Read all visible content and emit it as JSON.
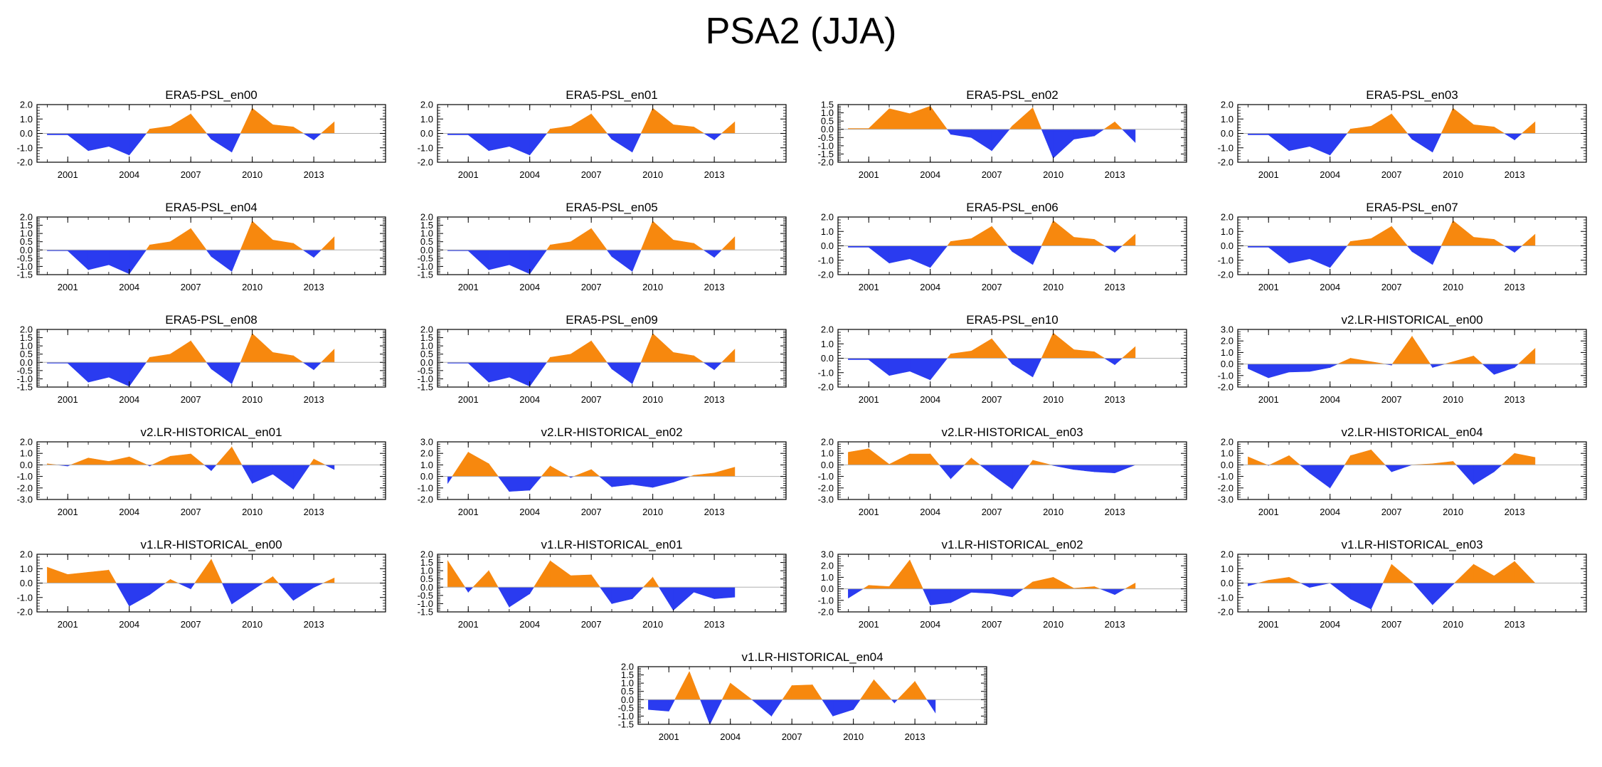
{
  "figure": {
    "title": "PSA2 (JJA)",
    "colors": {
      "positive": "#f7880e",
      "negative": "#2a3bf0",
      "zero_line": "#b0b0b0",
      "axis": "#000000"
    },
    "x_tick_labels": [
      "2001",
      "2004",
      "2007",
      "2010",
      "2013"
    ]
  },
  "chart_data": [
    {
      "type": "area",
      "title": "ERA5-PSL_en00",
      "x": [
        2000,
        2001,
        2002,
        2003,
        2004,
        2005,
        2006,
        2007,
        2008,
        2009,
        2010,
        2011,
        2012,
        2013,
        2014
      ],
      "values": [
        -0.1,
        -0.1,
        -1.2,
        -0.9,
        -1.5,
        0.3,
        0.5,
        1.35,
        -0.4,
        -1.3,
        1.75,
        0.6,
        0.45,
        -0.45,
        0.8
      ],
      "ylim": [
        -2,
        2
      ],
      "yticks": [
        "2.0",
        "1.0",
        "0.0",
        "-1.0",
        "-2.0"
      ],
      "xlim": [
        1999.5,
        2016.5
      ]
    },
    {
      "type": "area",
      "title": "ERA5-PSL_en01",
      "x": [
        2000,
        2001,
        2002,
        2003,
        2004,
        2005,
        2006,
        2007,
        2008,
        2009,
        2010,
        2011,
        2012,
        2013,
        2014
      ],
      "values": [
        -0.1,
        -0.1,
        -1.2,
        -0.9,
        -1.5,
        0.3,
        0.5,
        1.35,
        -0.4,
        -1.3,
        1.75,
        0.6,
        0.45,
        -0.45,
        0.8
      ],
      "ylim": [
        -2,
        2
      ],
      "yticks": [
        "2.0",
        "1.0",
        "0.0",
        "-1.0",
        "-2.0"
      ],
      "xlim": [
        1999.5,
        2016.5
      ]
    },
    {
      "type": "area",
      "title": "ERA5-PSL_en02",
      "x": [
        2000,
        2001,
        2002,
        2003,
        2004,
        2005,
        2006,
        2007,
        2008,
        2009,
        2010,
        2011,
        2012,
        2013,
        2014
      ],
      "values": [
        0.05,
        0.05,
        1.25,
        0.95,
        1.4,
        -0.3,
        -0.5,
        -1.3,
        0.2,
        1.3,
        -1.75,
        -0.6,
        -0.4,
        0.45,
        -0.8
      ],
      "ylim": [
        -2,
        1.5
      ],
      "yticks": [
        "1.5",
        "1.0",
        "0.5",
        "0.0",
        "-0.5",
        "-1.0",
        "-1.5",
        "-2.0"
      ],
      "xlim": [
        1999.5,
        2016.5
      ]
    },
    {
      "type": "area",
      "title": "ERA5-PSL_en03",
      "x": [
        2000,
        2001,
        2002,
        2003,
        2004,
        2005,
        2006,
        2007,
        2008,
        2009,
        2010,
        2011,
        2012,
        2013,
        2014
      ],
      "values": [
        -0.1,
        -0.1,
        -1.2,
        -0.9,
        -1.5,
        0.3,
        0.5,
        1.35,
        -0.4,
        -1.3,
        1.75,
        0.6,
        0.45,
        -0.45,
        0.8
      ],
      "ylim": [
        -2,
        2
      ],
      "yticks": [
        "2.0",
        "1.0",
        "0.0",
        "-1.0",
        "-2.0"
      ],
      "xlim": [
        1999.5,
        2016.5
      ]
    },
    {
      "type": "area",
      "title": "ERA5-PSL_en04",
      "x": [
        2000,
        2001,
        2002,
        2003,
        2004,
        2005,
        2006,
        2007,
        2008,
        2009,
        2010,
        2011,
        2012,
        2013,
        2014
      ],
      "values": [
        -0.05,
        -0.05,
        -1.2,
        -0.9,
        -1.45,
        0.3,
        0.5,
        1.3,
        -0.4,
        -1.3,
        1.75,
        0.6,
        0.4,
        -0.45,
        0.8
      ],
      "ylim": [
        -1.5,
        2
      ],
      "yticks": [
        "2.0",
        "1.5",
        "1.0",
        "0.5",
        "0.0",
        "-0.5",
        "-1.0",
        "-1.5"
      ],
      "xlim": [
        1999.5,
        2016.5
      ]
    },
    {
      "type": "area",
      "title": "ERA5-PSL_en05",
      "x": [
        2000,
        2001,
        2002,
        2003,
        2004,
        2005,
        2006,
        2007,
        2008,
        2009,
        2010,
        2011,
        2012,
        2013,
        2014
      ],
      "values": [
        -0.05,
        -0.05,
        -1.2,
        -0.9,
        -1.45,
        0.3,
        0.5,
        1.3,
        -0.4,
        -1.3,
        1.75,
        0.6,
        0.4,
        -0.45,
        0.8
      ],
      "ylim": [
        -1.5,
        2
      ],
      "yticks": [
        "2.0",
        "1.5",
        "1.0",
        "0.5",
        "0.0",
        "-0.5",
        "-1.0",
        "-1.5"
      ],
      "xlim": [
        1999.5,
        2016.5
      ]
    },
    {
      "type": "area",
      "title": "ERA5-PSL_en06",
      "x": [
        2000,
        2001,
        2002,
        2003,
        2004,
        2005,
        2006,
        2007,
        2008,
        2009,
        2010,
        2011,
        2012,
        2013,
        2014
      ],
      "values": [
        -0.1,
        -0.1,
        -1.2,
        -0.9,
        -1.5,
        0.3,
        0.5,
        1.35,
        -0.4,
        -1.3,
        1.75,
        0.6,
        0.45,
        -0.45,
        0.8
      ],
      "ylim": [
        -2,
        2
      ],
      "yticks": [
        "2.0",
        "1.0",
        "0.0",
        "-1.0",
        "-2.0"
      ],
      "xlim": [
        1999.5,
        2016.5
      ]
    },
    {
      "type": "area",
      "title": "ERA5-PSL_en07",
      "x": [
        2000,
        2001,
        2002,
        2003,
        2004,
        2005,
        2006,
        2007,
        2008,
        2009,
        2010,
        2011,
        2012,
        2013,
        2014
      ],
      "values": [
        -0.1,
        -0.1,
        -1.2,
        -0.9,
        -1.5,
        0.3,
        0.5,
        1.35,
        -0.4,
        -1.3,
        1.75,
        0.6,
        0.45,
        -0.45,
        0.8
      ],
      "ylim": [
        -2,
        2
      ],
      "yticks": [
        "2.0",
        "1.0",
        "0.0",
        "-1.0",
        "-2.0"
      ],
      "xlim": [
        1999.5,
        2016.5
      ]
    },
    {
      "type": "area",
      "title": "ERA5-PSL_en08",
      "x": [
        2000,
        2001,
        2002,
        2003,
        2004,
        2005,
        2006,
        2007,
        2008,
        2009,
        2010,
        2011,
        2012,
        2013,
        2014
      ],
      "values": [
        -0.05,
        -0.05,
        -1.2,
        -0.9,
        -1.45,
        0.3,
        0.5,
        1.3,
        -0.4,
        -1.3,
        1.75,
        0.6,
        0.4,
        -0.45,
        0.8
      ],
      "ylim": [
        -1.5,
        2
      ],
      "yticks": [
        "2.0",
        "1.5",
        "1.0",
        "0.5",
        "0.0",
        "-0.5",
        "-1.0",
        "-1.5"
      ],
      "xlim": [
        1999.5,
        2016.5
      ]
    },
    {
      "type": "area",
      "title": "ERA5-PSL_en09",
      "x": [
        2000,
        2001,
        2002,
        2003,
        2004,
        2005,
        2006,
        2007,
        2008,
        2009,
        2010,
        2011,
        2012,
        2013,
        2014
      ],
      "values": [
        -0.05,
        -0.05,
        -1.2,
        -0.9,
        -1.45,
        0.3,
        0.5,
        1.3,
        -0.4,
        -1.3,
        1.75,
        0.6,
        0.4,
        -0.45,
        0.8
      ],
      "ylim": [
        -1.5,
        2
      ],
      "yticks": [
        "2.0",
        "1.5",
        "1.0",
        "0.5",
        "0.0",
        "-0.5",
        "-1.0",
        "-1.5"
      ],
      "xlim": [
        1999.5,
        2016.5
      ]
    },
    {
      "type": "area",
      "title": "ERA5-PSL_en10",
      "x": [
        2000,
        2001,
        2002,
        2003,
        2004,
        2005,
        2006,
        2007,
        2008,
        2009,
        2010,
        2011,
        2012,
        2013,
        2014
      ],
      "values": [
        -0.1,
        -0.1,
        -1.2,
        -0.9,
        -1.5,
        0.3,
        0.5,
        1.35,
        -0.4,
        -1.3,
        1.75,
        0.6,
        0.45,
        -0.45,
        0.8
      ],
      "ylim": [
        -2,
        2
      ],
      "yticks": [
        "2.0",
        "1.0",
        "0.0",
        "-1.0",
        "-2.0"
      ],
      "xlim": [
        1999.5,
        2016.5
      ]
    },
    {
      "type": "area",
      "title": "v2.LR-HISTORICAL_en00",
      "x": [
        2000,
        2001,
        2002,
        2003,
        2004,
        2005,
        2006,
        2007,
        2008,
        2009,
        2010,
        2011,
        2012,
        2013,
        2014
      ],
      "values": [
        -0.4,
        -1.2,
        -0.7,
        -0.65,
        -0.3,
        0.5,
        0.2,
        -0.1,
        2.4,
        -0.3,
        0.2,
        0.7,
        -0.9,
        -0.3,
        1.35
      ],
      "ylim": [
        -2,
        3
      ],
      "yticks": [
        "3.0",
        "2.0",
        "1.0",
        "0.0",
        "-1.0",
        "-2.0"
      ],
      "xlim": [
        1999.5,
        2016.5
      ]
    },
    {
      "type": "area",
      "title": "v2.LR-HISTORICAL_en01",
      "x": [
        2000,
        2001,
        2002,
        2003,
        2004,
        2005,
        2006,
        2007,
        2008,
        2009,
        2010,
        2011,
        2012,
        2013,
        2014
      ],
      "values": [
        0.1,
        -0.1,
        0.6,
        0.3,
        0.7,
        -0.1,
        0.75,
        0.95,
        -0.5,
        1.55,
        -1.6,
        -0.8,
        -2.1,
        0.5,
        -0.4
      ],
      "ylim": [
        -3,
        2
      ],
      "yticks": [
        "2.0",
        "1.0",
        "0.0",
        "-1.0",
        "-2.0",
        "-3.0"
      ],
      "xlim": [
        1999.5,
        2016.5
      ]
    },
    {
      "type": "area",
      "title": "v2.LR-HISTORICAL_en02",
      "x": [
        2000,
        2001,
        2002,
        2003,
        2004,
        2005,
        2006,
        2007,
        2008,
        2009,
        2010,
        2011,
        2012,
        2013,
        2014
      ],
      "values": [
        -0.6,
        2.1,
        1.1,
        -1.3,
        -1.2,
        0.9,
        -0.1,
        0.6,
        -0.9,
        -0.7,
        -0.95,
        -0.5,
        0.1,
        0.3,
        0.8
      ],
      "ylim": [
        -2,
        3
      ],
      "yticks": [
        "3.0",
        "2.0",
        "1.0",
        "0.0",
        "-1.0",
        "-2.0"
      ],
      "xlim": [
        1999.5,
        2016.5
      ]
    },
    {
      "type": "area",
      "title": "v2.LR-HISTORICAL_en03",
      "x": [
        2000,
        2001,
        2002,
        2003,
        2004,
        2005,
        2006,
        2007,
        2008,
        2009,
        2010,
        2011,
        2012,
        2013,
        2014
      ],
      "values": [
        1.1,
        1.4,
        0.05,
        0.95,
        0.95,
        -1.2,
        0.6,
        -0.8,
        -2.1,
        0.4,
        -0.05,
        -0.4,
        -0.6,
        -0.7,
        0.0
      ],
      "ylim": [
        -3,
        2
      ],
      "yticks": [
        "2.0",
        "1.0",
        "0.0",
        "-1.0",
        "-2.0",
        "-3.0"
      ],
      "xlim": [
        1999.5,
        2016.5
      ]
    },
    {
      "type": "area",
      "title": "v2.LR-HISTORICAL_en04",
      "x": [
        2000,
        2001,
        2002,
        2003,
        2004,
        2005,
        2006,
        2007,
        2008,
        2009,
        2010,
        2011,
        2012,
        2013,
        2014
      ],
      "values": [
        0.7,
        -0.05,
        0.8,
        -0.7,
        -2.0,
        0.8,
        1.3,
        -0.6,
        0.0,
        0.1,
        0.3,
        -1.7,
        -0.6,
        1.0,
        0.65
      ],
      "ylim": [
        -3,
        2
      ],
      "yticks": [
        "2.0",
        "1.0",
        "0.0",
        "-1.0",
        "-2.0",
        "-3.0"
      ],
      "xlim": [
        1999.5,
        2016.5
      ]
    },
    {
      "type": "area",
      "title": "v1.LR-HISTORICAL_en00",
      "x": [
        2000,
        2001,
        2002,
        2003,
        2004,
        2005,
        2006,
        2007,
        2008,
        2009,
        2010,
        2011,
        2012,
        2013,
        2014
      ],
      "values": [
        1.1,
        0.6,
        0.75,
        0.9,
        -1.6,
        -0.8,
        0.25,
        -0.4,
        1.65,
        -1.45,
        -0.5,
        0.45,
        -1.2,
        -0.3,
        0.35
      ],
      "ylim": [
        -2,
        2
      ],
      "yticks": [
        "2.0",
        "1.0",
        "0.0",
        "-1.0",
        "-2.0"
      ],
      "xlim": [
        1999.5,
        2016.5
      ]
    },
    {
      "type": "area",
      "title": "v1.LR-HISTORICAL_en01",
      "x": [
        2000,
        2001,
        2002,
        2003,
        2004,
        2005,
        2006,
        2007,
        2008,
        2009,
        2010,
        2011,
        2012,
        2013,
        2014
      ],
      "values": [
        1.6,
        -0.3,
        1.0,
        -1.2,
        -0.4,
        1.6,
        0.7,
        0.75,
        -1.0,
        -0.7,
        0.6,
        -1.4,
        -0.3,
        -0.7,
        -0.6
      ],
      "ylim": [
        -1.5,
        2
      ],
      "yticks": [
        "2.0",
        "1.5",
        "1.0",
        "0.5",
        "0.0",
        "-0.5",
        "-1.0",
        "-1.5"
      ],
      "xlim": [
        1999.5,
        2016.5
      ]
    },
    {
      "type": "area",
      "title": "v1.LR-HISTORICAL_en02",
      "x": [
        2000,
        2001,
        2002,
        2003,
        2004,
        2005,
        2006,
        2007,
        2008,
        2009,
        2010,
        2011,
        2012,
        2013,
        2014
      ],
      "values": [
        -0.8,
        0.3,
        0.2,
        2.5,
        -1.4,
        -1.2,
        -0.3,
        -0.4,
        -0.7,
        0.6,
        1.0,
        0.05,
        0.2,
        -0.5,
        0.5
      ],
      "ylim": [
        -2,
        3
      ],
      "yticks": [
        "3.0",
        "2.0",
        "1.0",
        "0.0",
        "-1.0",
        "-2.0"
      ],
      "xlim": [
        1999.5,
        2016.5
      ]
    },
    {
      "type": "area",
      "title": "v1.LR-HISTORICAL_en03",
      "x": [
        2000,
        2001,
        2002,
        2003,
        2004,
        2005,
        2006,
        2007,
        2008,
        2009,
        2010,
        2011,
        2012,
        2013,
        2014
      ],
      "values": [
        -0.2,
        0.2,
        0.4,
        -0.3,
        0.0,
        -1.1,
        -1.8,
        1.3,
        0.1,
        -1.5,
        -0.1,
        1.3,
        0.5,
        1.5,
        0.0
      ],
      "ylim": [
        -2,
        2
      ],
      "yticks": [
        "2.0",
        "1.0",
        "0.0",
        "-1.0",
        "-2.0"
      ],
      "xlim": [
        1999.5,
        2016.5
      ]
    },
    {
      "type": "area",
      "title": "v1.LR-HISTORICAL_en04",
      "x": [
        2000,
        2001,
        2002,
        2003,
        2004,
        2005,
        2006,
        2007,
        2008,
        2009,
        2010,
        2011,
        2012,
        2013,
        2014
      ],
      "values": [
        -0.6,
        -0.7,
        1.7,
        -1.5,
        1.0,
        0.05,
        -1.0,
        0.85,
        0.9,
        -1.0,
        -0.6,
        1.2,
        -0.2,
        1.1,
        -0.8
      ],
      "ylim": [
        -1.5,
        2
      ],
      "yticks": [
        "2.0",
        "1.5",
        "1.0",
        "0.5",
        "0.0",
        "-0.5",
        "-1.0",
        "-1.5"
      ],
      "xlim": [
        1999.5,
        2016.5
      ]
    }
  ]
}
